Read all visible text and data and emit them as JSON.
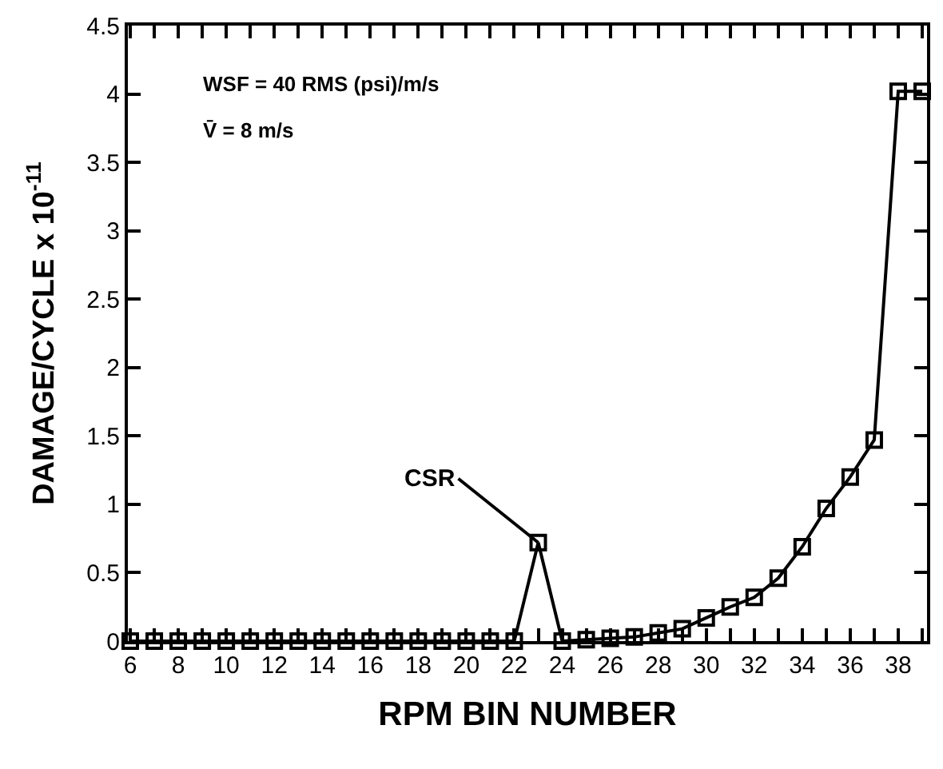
{
  "chart_data": {
    "type": "line",
    "xlabel": "RPM BIN NUMBER",
    "ylabel": "DAMAGE/CYCLE x 10$^{-11}$",
    "x": [
      6,
      7,
      8,
      9,
      10,
      11,
      12,
      13,
      14,
      15,
      16,
      17,
      18,
      19,
      20,
      21,
      22,
      23,
      24,
      25,
      26,
      27,
      28,
      29,
      30,
      31,
      32,
      33,
      34,
      35,
      36,
      37,
      38,
      39
    ],
    "series": [
      {
        "color": "#000000",
        "values": [
          0,
          0,
          0,
          0,
          0,
          0,
          0,
          0,
          0,
          0,
          0,
          0,
          0,
          0,
          0,
          0,
          0,
          0.72,
          0,
          0.01,
          0.02,
          0.03,
          0.06,
          0.09,
          0.17,
          0.25,
          0.32,
          0.46,
          0.69,
          0.97,
          1.2,
          1.47,
          4.02,
          4.02
        ]
      }
    ],
    "marker": "square",
    "line_style": "solid",
    "xlim": [
      5.9,
      39.2
    ],
    "xticks": [
      6,
      {
        "value": 7,
        "label": null
      },
      8,
      {
        "value": 9,
        "label": null
      },
      10,
      {
        "value": 11,
        "label": null
      },
      12,
      {
        "value": 13,
        "label": null
      },
      14,
      {
        "value": 15,
        "label": null
      },
      16,
      {
        "value": 17,
        "label": null
      },
      18,
      {
        "value": 19,
        "label": null
      },
      20,
      {
        "value": 21,
        "label": null
      },
      22,
      {
        "value": 23,
        "label": null
      },
      24,
      {
        "value": 25,
        "label": null
      },
      26,
      {
        "value": 27,
        "label": null
      },
      28,
      {
        "value": 29,
        "label": null
      },
      30,
      {
        "value": 31,
        "label": null
      },
      32,
      {
        "value": 33,
        "label": null
      },
      34,
      {
        "value": 35,
        "label": null
      },
      36,
      {
        "value": 37,
        "label": null
      },
      38,
      {
        "value": 39,
        "label": null
      }
    ],
    "ylim": [
      0,
      4.5
    ],
    "yticks": [
      0,
      0.5,
      1,
      1.5,
      2,
      2.5,
      3,
      3.5,
      4,
      4.5
    ],
    "annotations": [
      "WSF = 40 RMS (psi)/m/s",
      "V̄ = 8 m/s",
      {
        "text": "CSR",
        "x": 23,
        "y": 0.72
      }
    ]
  }
}
